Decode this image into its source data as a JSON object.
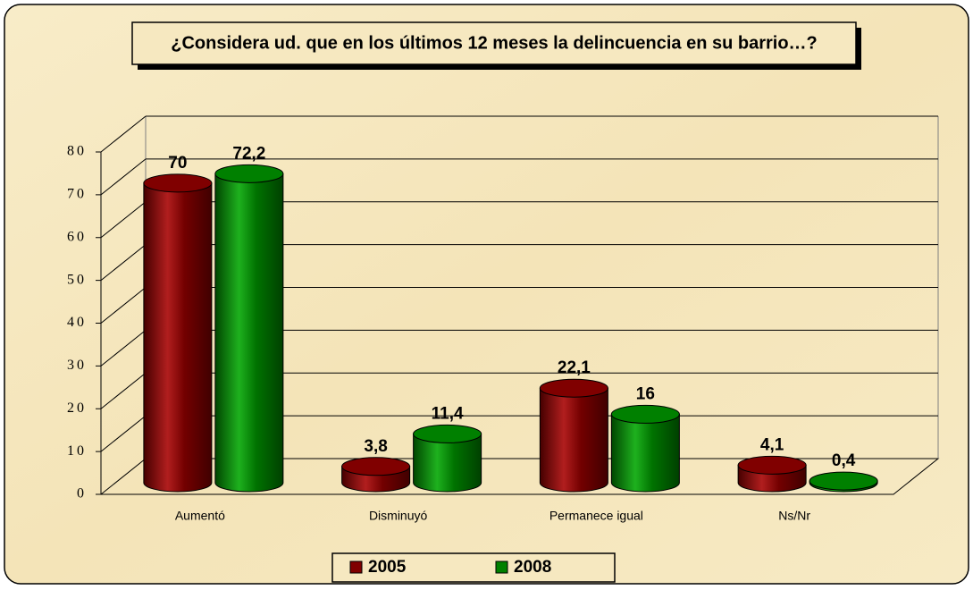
{
  "chart_data": {
    "type": "bar3d",
    "title": "¿Considera ud. que en los últimos 12 meses la delincuencia en su barrio…?",
    "categories": [
      "Aumentó",
      "Disminuyó",
      "Permanece igual",
      "Ns/Nr"
    ],
    "series": [
      {
        "name": "2005",
        "color": "#800000",
        "values": [
          70,
          3.8,
          22.1,
          4.1
        ],
        "value_labels": [
          "70",
          "3,8",
          "22,1",
          "4,1"
        ]
      },
      {
        "name": "2008",
        "color": "#008000",
        "values": [
          72.2,
          11.4,
          16,
          0.4
        ],
        "value_labels": [
          "72,2",
          "11,4",
          "16",
          "0,4"
        ]
      }
    ],
    "ylim": [
      0,
      80
    ],
    "yticks": [
      0,
      10,
      20,
      30,
      40,
      50,
      60,
      70,
      80
    ],
    "grid": true,
    "legend": "bottom"
  }
}
